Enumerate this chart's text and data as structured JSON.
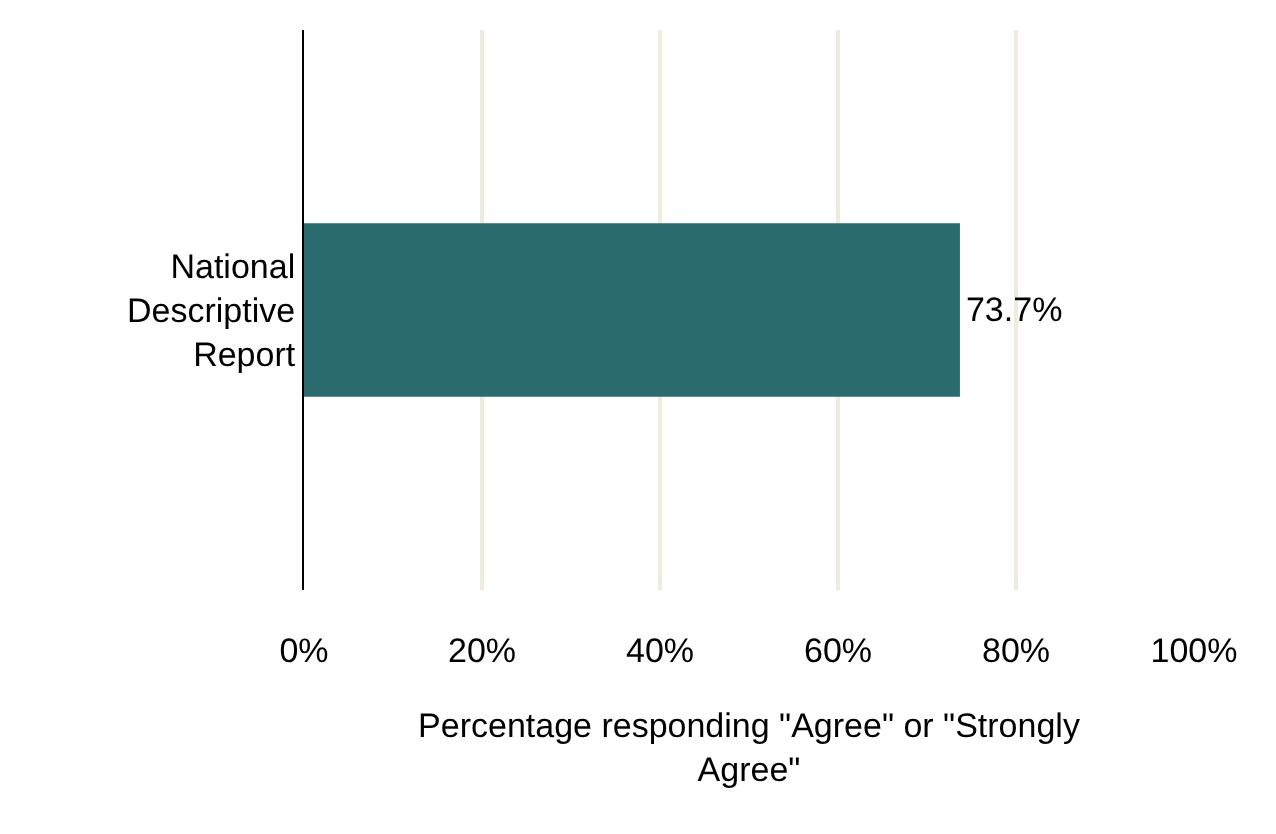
{
  "chart_data": {
    "type": "bar",
    "orientation": "horizontal",
    "categories": [
      "National Descriptive Report"
    ],
    "values": [
      73.7
    ],
    "color": "#2a6b6e",
    "value_labels": [
      "73.7%"
    ],
    "xlabel": "Percentage responding \"Agree\" or \"Strongly Agree\"",
    "xlim": [
      0,
      100
    ],
    "xticks": [
      {
        "value": 0,
        "label": "0%"
      },
      {
        "value": 20,
        "label": "20%"
      },
      {
        "value": 40,
        "label": "40%"
      },
      {
        "value": 60,
        "label": "60%"
      },
      {
        "value": 80,
        "label": "80%"
      },
      {
        "value": 100,
        "label": "100%"
      }
    ],
    "grid": "x"
  }
}
